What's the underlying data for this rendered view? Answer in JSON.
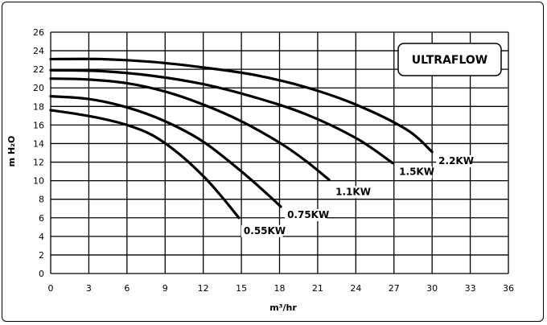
{
  "chart_data": {
    "type": "line",
    "title": "ULTRAFLOW",
    "xlabel": "m³/hr",
    "ylabel": "m H₂O",
    "xlim": [
      0,
      36
    ],
    "ylim": [
      0,
      26
    ],
    "xticks": [
      0,
      3,
      6,
      9,
      12,
      15,
      18,
      21,
      24,
      27,
      30,
      33,
      36
    ],
    "yticks": [
      0,
      2,
      4,
      6,
      8,
      10,
      12,
      14,
      16,
      18,
      20,
      22,
      24,
      26
    ],
    "grid": true,
    "series": [
      {
        "name": "0.55KW",
        "x": [
          0,
          2,
          4,
          6,
          8,
          10,
          12,
          13.5,
          14.8
        ],
        "y": [
          17.6,
          17.2,
          16.7,
          16.0,
          14.9,
          13.0,
          10.5,
          8.2,
          6.0
        ]
      },
      {
        "name": "0.75KW",
        "x": [
          0,
          3,
          6,
          9,
          12,
          15,
          17,
          18.1
        ],
        "y": [
          19.1,
          18.8,
          17.9,
          16.4,
          14.2,
          11.0,
          8.6,
          7.2
        ]
      },
      {
        "name": "1.1KW",
        "x": [
          0,
          3,
          6,
          9,
          12,
          15,
          18,
          20,
          21.9
        ],
        "y": [
          21.0,
          20.9,
          20.5,
          19.6,
          18.2,
          16.4,
          14.1,
          12.2,
          10.1
        ]
      },
      {
        "name": "1.5KW",
        "x": [
          0,
          4,
          8,
          12,
          16,
          20,
          24,
          26.9
        ],
        "y": [
          21.9,
          21.8,
          21.3,
          20.4,
          19.0,
          17.2,
          14.6,
          11.9
        ]
      },
      {
        "name": "2.2KW",
        "x": [
          0,
          4,
          8,
          12,
          16,
          20,
          24,
          28,
          30.0
        ],
        "y": [
          23.1,
          23.1,
          22.8,
          22.2,
          21.4,
          20.1,
          18.2,
          15.5,
          13.1
        ]
      }
    ]
  }
}
